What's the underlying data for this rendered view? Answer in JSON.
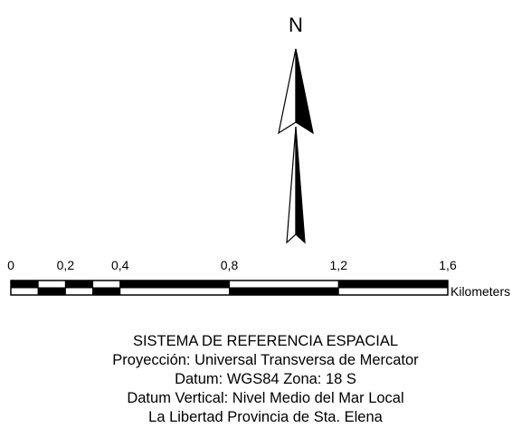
{
  "north_arrow": {
    "label": "N",
    "icon": "north-arrow-icon"
  },
  "scale_bar": {
    "ticks": [
      {
        "label": "0",
        "value": 0
      },
      {
        "label": "0,2",
        "value": 0.2
      },
      {
        "label": "0,4",
        "value": 0.4
      },
      {
        "label": "0,8",
        "value": 0.8
      },
      {
        "label": "1,2",
        "value": 1.2
      },
      {
        "label": "1,6",
        "value": 1.6
      }
    ],
    "unit": "Kilometers",
    "max_value": 1.6,
    "colors": {
      "dark": "#000000",
      "light": "#ffffff"
    }
  },
  "reference": {
    "line1": "SISTEMA DE REFERENCIA ESPACIAL",
    "line2": "Proyección: Universal Transversa de Mercator",
    "line3": "Datum: WGS84 Zona: 18 S",
    "line4": "Datum Vertical: Nivel Medio del Mar Local",
    "line5": "La Libertad Provincia de Sta. Elena"
  }
}
